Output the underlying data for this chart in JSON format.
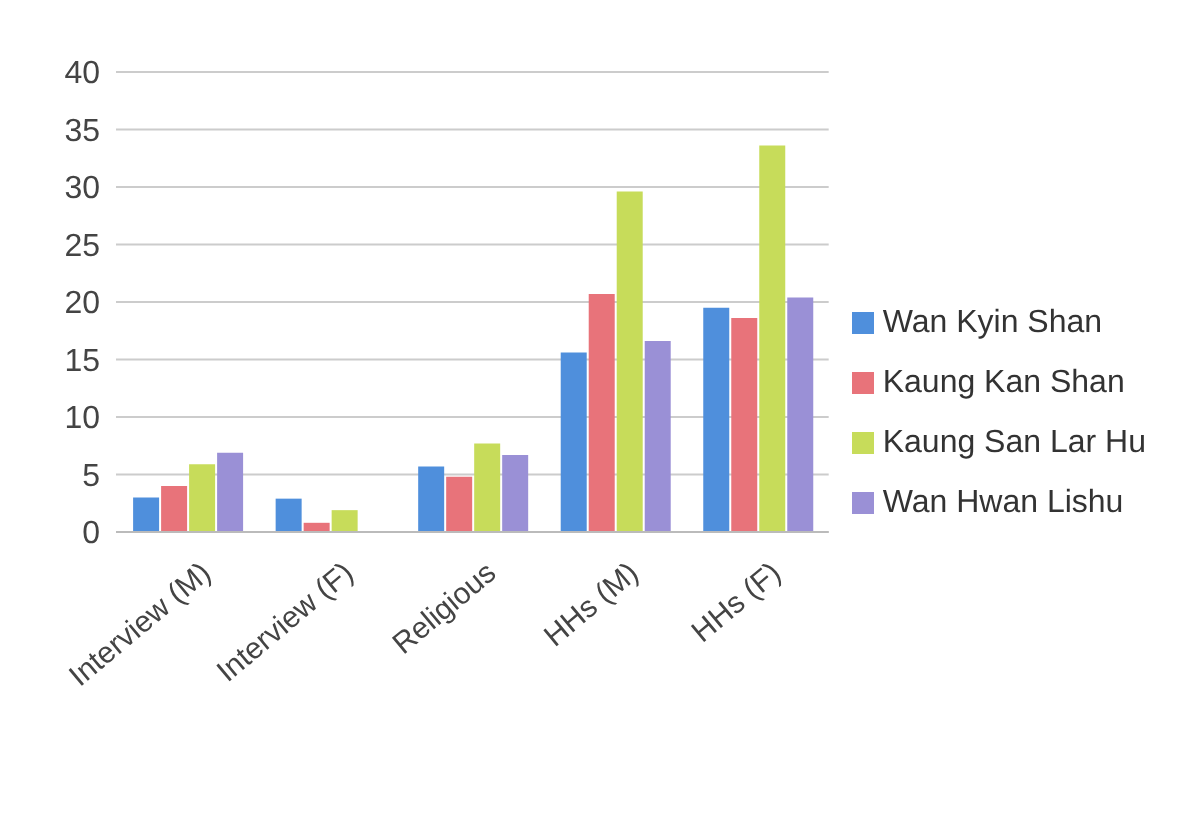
{
  "chart_data": {
    "type": "bar",
    "categories": [
      "Interview (M)",
      "Interview (F)",
      "Religious",
      "HHs (M)",
      "HHs (F)"
    ],
    "series": [
      {
        "name": "Wan Kyin Shan",
        "color": "#4f8fdc",
        "values": [
          3,
          2.9,
          5.7,
          15.6,
          19.5
        ]
      },
      {
        "name": "Kaung Kan Shan",
        "color": "#e8737a",
        "values": [
          4,
          0.8,
          4.8,
          20.7,
          18.6
        ]
      },
      {
        "name": "Kaung San Lar Hu",
        "color": "#c7dc5a",
        "values": [
          5.9,
          1.9,
          7.7,
          29.6,
          33.6
        ]
      },
      {
        "name": "Wan Hwan Lishu",
        "color": "#9a90d6",
        "values": [
          6.9,
          0,
          6.7,
          16.6,
          20.4
        ]
      }
    ],
    "ylim": [
      0,
      40
    ],
    "yticks": [
      0,
      5,
      10,
      15,
      20,
      25,
      30,
      35,
      40
    ],
    "grid": "y",
    "legend": "right"
  }
}
